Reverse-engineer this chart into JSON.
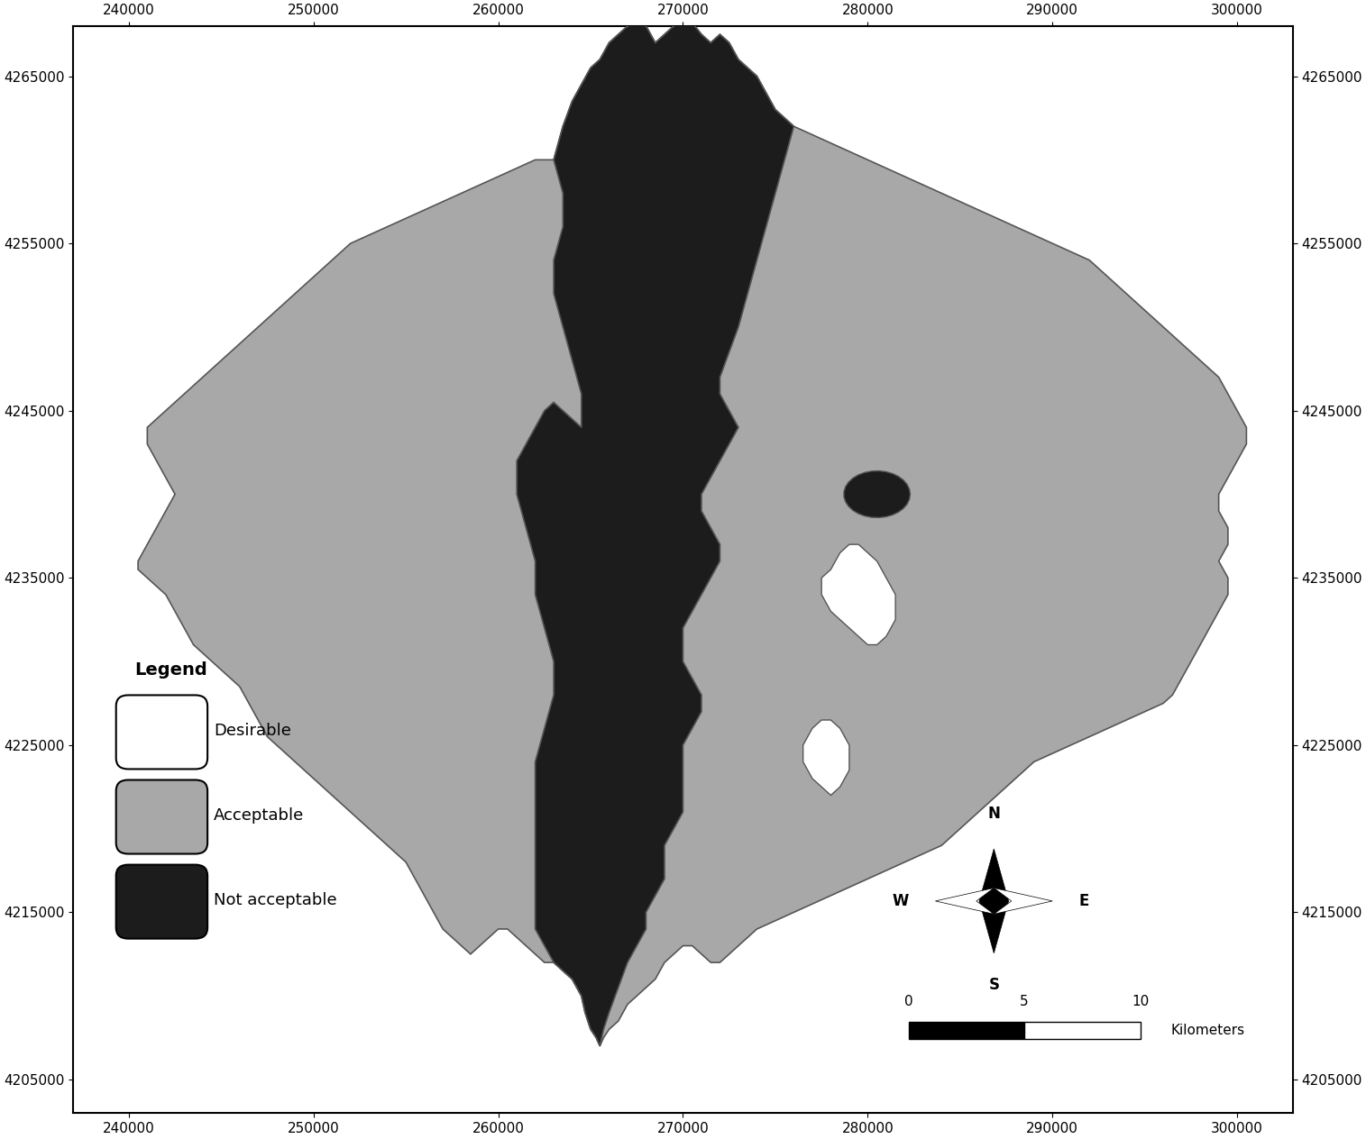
{
  "xlim": [
    237000,
    303000
  ],
  "ylim": [
    4203000,
    4268000
  ],
  "xticks": [
    240000,
    250000,
    260000,
    270000,
    280000,
    290000,
    300000
  ],
  "yticks": [
    4205000,
    4215000,
    4225000,
    4235000,
    4245000,
    4255000,
    4265000
  ],
  "color_acceptable": "#A8A8A8",
  "color_not_acceptable": "#1C1C1C",
  "color_desirable": "#FFFFFF",
  "color_border": "#555555",
  "background": "#FFFFFF",
  "legend_title": "Legend",
  "legend_items": [
    "Desirable",
    "Acceptable",
    "Not acceptable"
  ],
  "legend_colors": [
    "#FFFFFF",
    "#A8A8A8",
    "#1C1C1C"
  ],
  "tick_fontsize": 11,
  "legend_fontsize": 13,
  "legend_title_fontsize": 14
}
